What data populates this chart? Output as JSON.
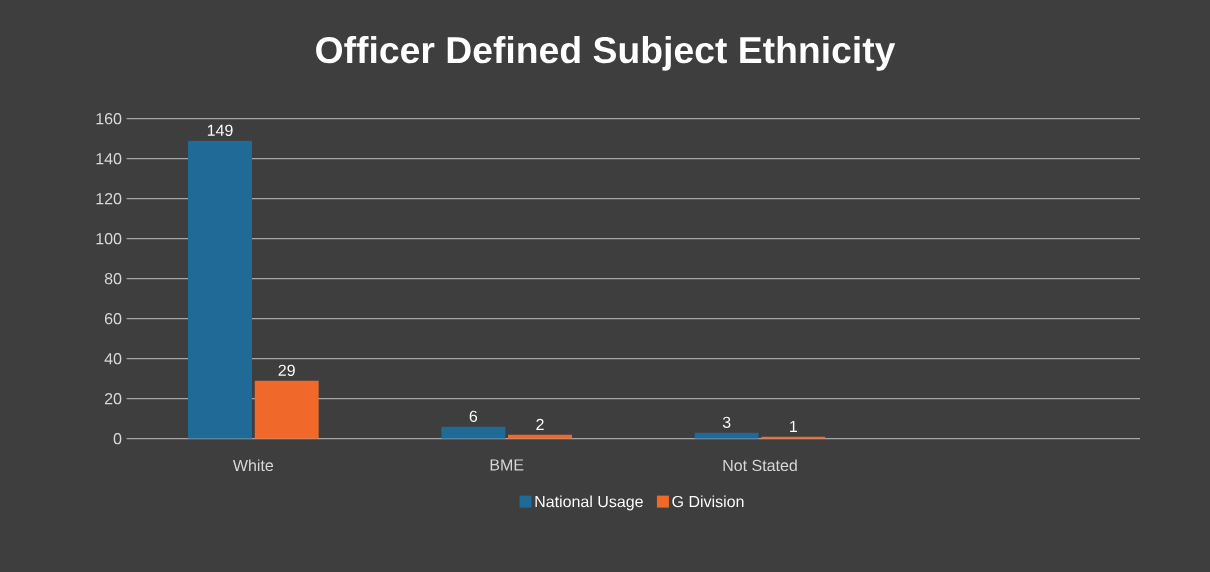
{
  "chart_data": {
    "type": "bar",
    "title": "Officer Defined Subject Ethnicity",
    "categories": [
      "White",
      "BME",
      "Not Stated",
      null
    ],
    "series": [
      {
        "name": "National Usage",
        "color": "#1f6a96",
        "values": [
          149,
          6,
          3,
          null
        ]
      },
      {
        "name": "G Division",
        "color": "#f0692a",
        "values": [
          29,
          2,
          1,
          null
        ]
      }
    ],
    "ylim": [
      0,
      160
    ],
    "yticks": [
      0,
      20,
      40,
      60,
      80,
      100,
      120,
      140,
      160
    ],
    "grid": "y",
    "legend": "bottom",
    "data_labels": true
  }
}
